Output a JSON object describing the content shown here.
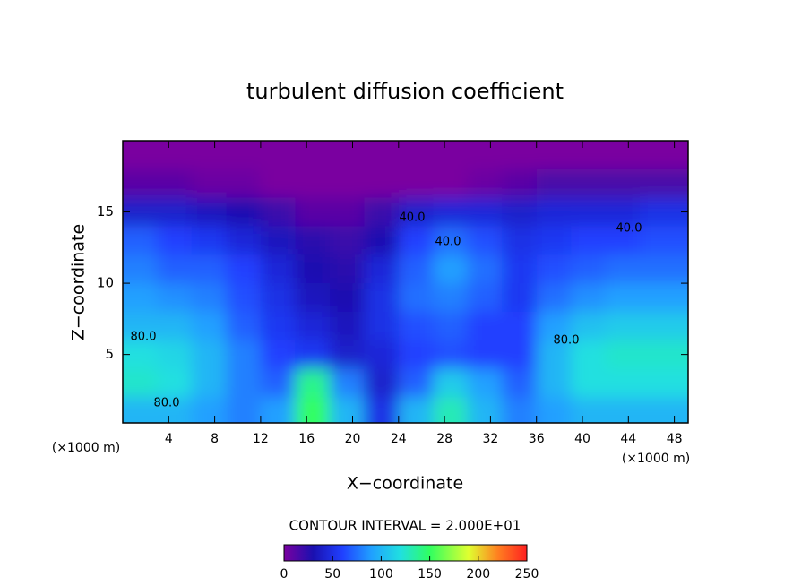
{
  "chart_data": {
    "type": "heatmap",
    "title": "turbulent diffusion coefficient",
    "xlabel": "X−coordinate",
    "ylabel": "Z−coordinate",
    "x_unit_label": "(×1000 m)",
    "y_unit_label": "(×1000 m)",
    "xlim": [
      0,
      49.2
    ],
    "ylim": [
      0.2,
      20
    ],
    "xticks": [
      4,
      8,
      12,
      16,
      20,
      24,
      28,
      32,
      36,
      40,
      44,
      48
    ],
    "yticks": [
      5,
      10,
      15
    ],
    "x": [
      1.5,
      4.5,
      7.5,
      10.5,
      13.5,
      16.5,
      19.5,
      22.5,
      25.5,
      28.5,
      31.5,
      34.5,
      37.5,
      40.5,
      43.5,
      46.5
    ],
    "y": [
      19,
      17,
      15,
      13,
      11,
      9,
      7,
      5,
      3,
      1
    ],
    "z": [
      [
        0,
        0,
        0,
        0,
        0,
        0,
        0,
        0,
        0,
        0,
        0,
        0,
        0,
        0,
        0,
        0
      ],
      [
        10,
        10,
        5,
        5,
        0,
        0,
        0,
        0,
        0,
        0,
        5,
        10,
        15,
        15,
        15,
        15
      ],
      [
        40,
        40,
        35,
        30,
        20,
        10,
        10,
        20,
        40,
        45,
        45,
        40,
        45,
        45,
        45,
        50
      ],
      [
        70,
        60,
        55,
        45,
        35,
        25,
        20,
        30,
        60,
        75,
        65,
        50,
        55,
        60,
        60,
        65
      ],
      [
        80,
        70,
        70,
        60,
        45,
        30,
        25,
        45,
        70,
        90,
        75,
        55,
        65,
        70,
        75,
        75
      ],
      [
        90,
        85,
        80,
        65,
        50,
        35,
        30,
        50,
        75,
        80,
        70,
        55,
        75,
        85,
        90,
        90
      ],
      [
        100,
        100,
        90,
        70,
        55,
        45,
        35,
        50,
        65,
        70,
        60,
        60,
        90,
        105,
        110,
        110
      ],
      [
        120,
        115,
        100,
        80,
        60,
        55,
        40,
        45,
        60,
        65,
        60,
        60,
        100,
        120,
        125,
        125
      ],
      [
        125,
        120,
        100,
        80,
        70,
        140,
        80,
        40,
        70,
        110,
        90,
        70,
        100,
        120,
        120,
        120
      ],
      [
        100,
        100,
        90,
        80,
        90,
        150,
        100,
        50,
        100,
        130,
        100,
        80,
        90,
        100,
        100,
        100
      ]
    ],
    "colormap": [
      [
        0,
        "#7a00a0"
      ],
      [
        30,
        "#1a10b0"
      ],
      [
        60,
        "#2040ff"
      ],
      [
        90,
        "#20a0ff"
      ],
      [
        120,
        "#20e0e0"
      ],
      [
        150,
        "#30ff60"
      ],
      [
        190,
        "#e0ff30"
      ],
      [
        220,
        "#ff8020"
      ],
      [
        250,
        "#ff2020"
      ]
    ],
    "clim": [
      0,
      250
    ],
    "colorbar_ticks": [
      0,
      50,
      100,
      150,
      200,
      250
    ],
    "contour_caption": "CONTOUR INTERVAL = 2.000E+01",
    "annotations": [
      "40.0",
      "40.0",
      "40.0",
      "80.0",
      "80.0",
      "80.0"
    ]
  }
}
